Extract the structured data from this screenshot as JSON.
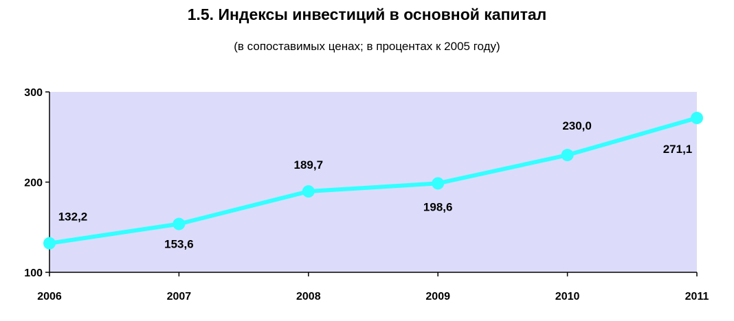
{
  "chart_data": {
    "type": "line",
    "title": "1.5. Индексы инвестиций в основной капитал",
    "subtitle": "(в сопоставимых ценах; в процентах к 2005 году)",
    "categories": [
      "2006",
      "2007",
      "2008",
      "2009",
      "2010",
      "2011"
    ],
    "values": [
      132.2,
      153.6,
      189.7,
      198.6,
      230.0,
      271.1
    ],
    "data_labels": [
      "132,2",
      "153,6",
      "189,7",
      "198,6",
      "230,0",
      "271,1"
    ],
    "y_ticks": [
      "100",
      "200",
      "300"
    ],
    "ylim": [
      100,
      300
    ],
    "grid": false,
    "legend": "none",
    "colors": {
      "line": "#33ffff",
      "plot_background": "#dcdcfa",
      "axis": "#000000"
    }
  }
}
